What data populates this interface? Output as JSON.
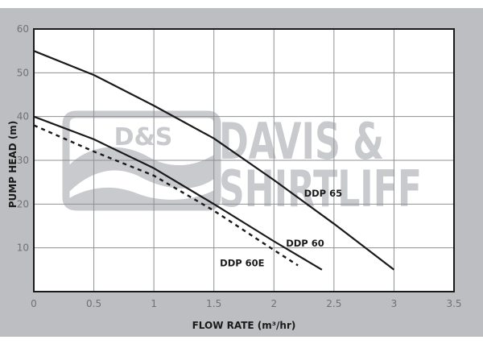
{
  "chart_data": {
    "type": "line",
    "title": "",
    "xlabel": "FLOW RATE (m³/hr)",
    "ylabel": "PUMP HEAD (m)",
    "xlim": [
      0,
      3.5
    ],
    "ylim": [
      0,
      60
    ],
    "x_ticks": [
      "0",
      "0.5",
      "1",
      "1.5",
      "2",
      "2.5",
      "3",
      "3.5"
    ],
    "y_ticks": [
      "10",
      "20",
      "30",
      "40",
      "50",
      "60"
    ],
    "grid": true,
    "legend": "inline labels",
    "series": [
      {
        "name": "DDP 65",
        "style": "solid",
        "x": [
          0,
          0.5,
          1.0,
          1.5,
          2.0,
          2.5,
          3.0
        ],
        "values": [
          55,
          49.5,
          42.5,
          35,
          25.5,
          15.5,
          5
        ]
      },
      {
        "name": "DDP 60",
        "style": "solid",
        "x": [
          0,
          0.5,
          1.0,
          1.5,
          2.0,
          2.4
        ],
        "values": [
          40,
          34.8,
          28.2,
          20,
          11.5,
          5
        ]
      },
      {
        "name": "DDP 60E",
        "style": "dashed",
        "x": [
          0,
          0.5,
          1.0,
          1.5,
          2.0,
          2.2
        ],
        "values": [
          38,
          32,
          26.5,
          18.5,
          9.5,
          6
        ]
      }
    ],
    "annotations": [
      {
        "text": "DDP 65",
        "x": 2.25,
        "y": 22.5
      },
      {
        "text": "DDP 60",
        "x": 2.1,
        "y": 11
      },
      {
        "text": "DDP 60E",
        "x": 1.55,
        "y": 6.5
      }
    ]
  },
  "watermark": {
    "badge": "D&S",
    "line1": "DAVIS &",
    "line2": "SHIRTLIFF"
  },
  "colors": {
    "frame": "#bdbec2",
    "plot_bg": "#ffffff",
    "grid": "#8e9094",
    "series": "#1a1a1a",
    "watermark": "#c9cacd"
  }
}
